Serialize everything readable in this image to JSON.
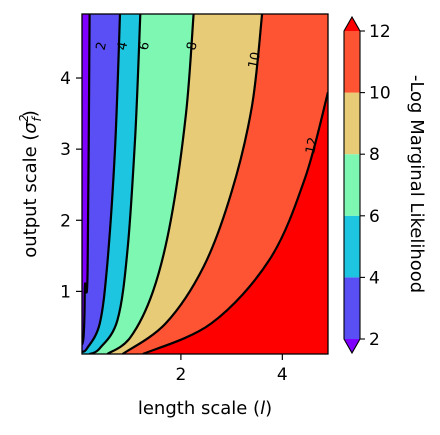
{
  "chart_data": {
    "type": "contour",
    "title": "",
    "xlabel": "length scale (l)",
    "xlabel_parts": {
      "text": "length scale (",
      "var": "l",
      "close": ")"
    },
    "ylabel": "output scale (σf²)",
    "ylabel_parts": {
      "text": "output scale (",
      "var": "σ",
      "sub": "f",
      "sup": "2",
      "close": ")"
    },
    "xlim": [
      0.05,
      4.9
    ],
    "ylim": [
      0.12,
      4.9
    ],
    "xticks": [
      "2",
      "4"
    ],
    "xtick_values": [
      2,
      4
    ],
    "yticks": [
      "1",
      "2",
      "3",
      "4"
    ],
    "ytick_values": [
      1,
      2,
      3,
      4
    ],
    "levels": [
      2,
      4,
      6,
      8,
      10,
      12
    ],
    "level_labels": [
      "2",
      "4",
      "6",
      "8",
      "10",
      "12"
    ],
    "band_colors": [
      "#8000ff",
      "#5a4ef5",
      "#1ec5e0",
      "#7df7b2",
      "#e8cb77",
      "#ff5434",
      "#ff0000"
    ],
    "line_color": "#000000",
    "contour_lines": [
      {
        "level": 2,
        "points": [
          [
            0.05,
            0.25
          ],
          [
            0.08,
            0.35
          ],
          [
            0.1,
            0.7
          ],
          [
            0.11,
            1.1
          ],
          [
            0.16,
            1.3
          ],
          [
            0.2,
            4.9
          ]
        ]
      },
      {
        "level": 4,
        "points": [
          [
            0.05,
            0.15
          ],
          [
            0.15,
            0.2
          ],
          [
            0.4,
            0.55
          ],
          [
            0.55,
            1.4
          ],
          [
            0.7,
            3.0
          ],
          [
            0.8,
            4.9
          ]
        ]
      },
      {
        "level": 6,
        "points": [
          [
            0.2,
            0.12
          ],
          [
            0.4,
            0.2
          ],
          [
            0.75,
            0.6
          ],
          [
            0.95,
            1.6
          ],
          [
            1.1,
            3.2
          ],
          [
            1.2,
            4.9
          ]
        ]
      },
      {
        "level": 8,
        "points": [
          [
            0.55,
            0.12
          ],
          [
            1.0,
            0.35
          ],
          [
            1.45,
            1.0
          ],
          [
            1.8,
            2.0
          ],
          [
            2.1,
            3.5
          ],
          [
            2.25,
            4.9
          ]
        ]
      },
      {
        "level": 10,
        "points": [
          [
            0.85,
            0.12
          ],
          [
            1.7,
            0.55
          ],
          [
            2.45,
            1.35
          ],
          [
            3.0,
            2.4
          ],
          [
            3.4,
            3.6
          ],
          [
            3.6,
            4.9
          ]
        ]
      },
      {
        "level": 12,
        "points": [
          [
            1.25,
            0.12
          ],
          [
            2.6,
            0.55
          ],
          [
            3.75,
            1.45
          ],
          [
            4.45,
            2.6
          ],
          [
            4.9,
            3.8
          ]
        ]
      }
    ],
    "contour_label_positions": [
      {
        "label": "2",
        "x": 0.43,
        "y": 4.45
      },
      {
        "label": "4",
        "x": 0.85,
        "y": 4.45
      },
      {
        "label": "6",
        "x": 1.28,
        "y": 4.45
      },
      {
        "label": "8",
        "x": 2.22,
        "y": 4.45
      },
      {
        "label": "10",
        "x": 3.45,
        "y": 4.25
      },
      {
        "label": "12",
        "x": 4.58,
        "y": 3.05
      }
    ],
    "colorbar": {
      "label": "-Log Marginal Likelihood",
      "ticks": [
        "2",
        "4",
        "6",
        "8",
        "10",
        "12"
      ],
      "tick_values": [
        2,
        4,
        6,
        8,
        10,
        12
      ],
      "extend": "both",
      "extend_low_color": "#8000ff",
      "extend_high_color": "#ff0000"
    }
  }
}
